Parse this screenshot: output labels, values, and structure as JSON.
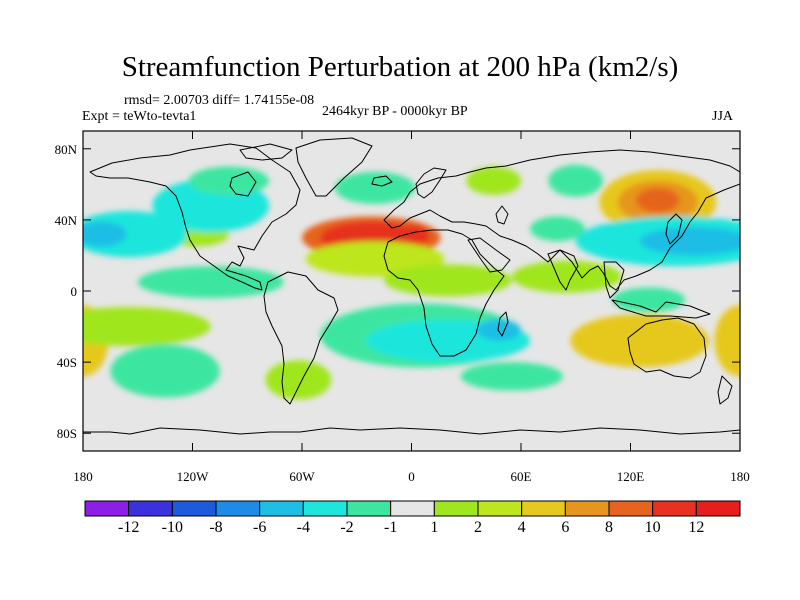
{
  "header": {
    "title": "Streamfunction Perturbation at 200 hPa (km2/s)",
    "stats": "rmsd= 2.00703 diff= 1.74155e-08",
    "experiment": "Expt = teWto-tevta1",
    "period": "2464kyr BP - 0000kyr BP",
    "season": "JJA"
  },
  "chart_data": {
    "type": "heatmap",
    "subtype": "filled-contour map",
    "title": "Streamfunction Perturbation at 200 hPa (km2/s)",
    "variable": "Streamfunction perturbation",
    "level": "200 hPa",
    "units": "km2/s",
    "season": "JJA",
    "xlim": [
      -180,
      180
    ],
    "ylim": [
      -90,
      90
    ],
    "x_ticks": [
      {
        "value": -180,
        "label": "180"
      },
      {
        "value": -120,
        "label": "120W"
      },
      {
        "value": -60,
        "label": "60W"
      },
      {
        "value": 0,
        "label": "0"
      },
      {
        "value": 60,
        "label": "60E"
      },
      {
        "value": 120,
        "label": "120E"
      },
      {
        "value": 180,
        "label": "180"
      }
    ],
    "y_ticks": [
      {
        "value": 80,
        "label": "80N"
      },
      {
        "value": 40,
        "label": "40N"
      },
      {
        "value": 0,
        "label": "0"
      },
      {
        "value": -40,
        "label": "40S"
      },
      {
        "value": -80,
        "label": "80S"
      }
    ],
    "levels": [
      -12,
      -10,
      -8,
      -6,
      -4,
      -2,
      -1,
      1,
      2,
      4,
      6,
      8,
      10,
      12
    ],
    "colorbar": {
      "labels": [
        "-12",
        "-10",
        "-8",
        "-6",
        "-4",
        "-2",
        "-1",
        "1",
        "2",
        "4",
        "6",
        "8",
        "10",
        "12"
      ],
      "colors": [
        "#8c1ee6",
        "#3c32dc",
        "#1e5adc",
        "#1e8ce6",
        "#1ebee6",
        "#1ee6dc",
        "#3ce6a0",
        "#e6e6e6",
        "#a0e61e",
        "#bee61e",
        "#e6c81e",
        "#e6961e",
        "#e6641e",
        "#e6321e",
        "#e61e1e"
      ]
    },
    "features": [
      {
        "name": "positive",
        "lon": -22,
        "lat": 30,
        "rx": 38,
        "ry": 12,
        "level_index": 12
      },
      {
        "name": "positive",
        "lon": -22,
        "lat": 30,
        "rx": 28,
        "ry": 9,
        "level_index": 13
      },
      {
        "name": "positive",
        "lon": 0,
        "lat": 31,
        "rx": 10,
        "ry": 6,
        "level_index": 13
      },
      {
        "name": "positive",
        "lon": 135,
        "lat": 50,
        "rx": 32,
        "ry": 18,
        "level_index": 10
      },
      {
        "name": "positive",
        "lon": 135,
        "lat": 50,
        "rx": 22,
        "ry": 12,
        "level_index": 11
      },
      {
        "name": "positive",
        "lon": 135,
        "lat": 51,
        "rx": 12,
        "ry": 7,
        "level_index": 12
      },
      {
        "name": "positive",
        "lon": 125,
        "lat": -28,
        "rx": 38,
        "ry": 15,
        "level_index": 10
      },
      {
        "name": "positive",
        "lon": -180,
        "lat": -28,
        "rx": 14,
        "ry": 20,
        "level_index": 10
      },
      {
        "name": "positive",
        "lon": 180,
        "lat": -28,
        "rx": 14,
        "ry": 20,
        "level_index": 10
      },
      {
        "name": "positive",
        "lon": -20,
        "lat": 18,
        "rx": 38,
        "ry": 10,
        "level_index": 9
      },
      {
        "name": "positive",
        "lon": -118,
        "lat": 32,
        "rx": 18,
        "ry": 7,
        "level_index": 8
      },
      {
        "name": "positive",
        "lon": -155,
        "lat": -20,
        "rx": 45,
        "ry": 11,
        "level_index": 8
      },
      {
        "name": "positive",
        "lon": 20,
        "lat": 6,
        "rx": 35,
        "ry": 9,
        "level_index": 8
      },
      {
        "name": "positive",
        "lon": -62,
        "lat": -50,
        "rx": 18,
        "ry": 11,
        "level_index": 8
      },
      {
        "name": "positive",
        "lon": 45,
        "lat": 62,
        "rx": 15,
        "ry": 8,
        "level_index": 8
      },
      {
        "name": "positive",
        "lon": 85,
        "lat": 8,
        "rx": 30,
        "ry": 9,
        "level_index": 8
      },
      {
        "name": "negative",
        "lon": -155,
        "lat": 32,
        "rx": 32,
        "ry": 13,
        "level_index": 5
      },
      {
        "name": "negative",
        "lon": -170,
        "lat": 32,
        "rx": 14,
        "ry": 7,
        "level_index": 4
      },
      {
        "name": "negative",
        "lon": 145,
        "lat": 28,
        "rx": 55,
        "ry": 14,
        "level_index": 5
      },
      {
        "name": "negative",
        "lon": 155,
        "lat": 28,
        "rx": 30,
        "ry": 8,
        "level_index": 4
      },
      {
        "name": "negative",
        "lon": -110,
        "lat": 48,
        "rx": 32,
        "ry": 15,
        "level_index": 5
      },
      {
        "name": "negative",
        "lon": -100,
        "lat": 62,
        "rx": 22,
        "ry": 8,
        "level_index": 6
      },
      {
        "name": "negative",
        "lon": 5,
        "lat": -25,
        "rx": 55,
        "ry": 18,
        "level_index": 6
      },
      {
        "name": "negative",
        "lon": 20,
        "lat": -28,
        "rx": 45,
        "ry": 12,
        "level_index": 5
      },
      {
        "name": "negative",
        "lon": 48,
        "lat": -22,
        "rx": 12,
        "ry": 6,
        "level_index": 4
      },
      {
        "name": "negative",
        "lon": -135,
        "lat": -45,
        "rx": 30,
        "ry": 15,
        "level_index": 6
      },
      {
        "name": "negative",
        "lon": -110,
        "lat": 5,
        "rx": 40,
        "ry": 9,
        "level_index": 6
      },
      {
        "name": "negative",
        "lon": -20,
        "lat": 58,
        "rx": 22,
        "ry": 9,
        "level_index": 6
      },
      {
        "name": "negative",
        "lon": 80,
        "lat": 35,
        "rx": 15,
        "ry": 7,
        "level_index": 6
      },
      {
        "name": "negative",
        "lon": 90,
        "lat": 62,
        "rx": 15,
        "ry": 9,
        "level_index": 6
      },
      {
        "name": "negative",
        "lon": 55,
        "lat": -48,
        "rx": 28,
        "ry": 8,
        "level_index": 6
      },
      {
        "name": "negative",
        "lon": 130,
        "lat": -5,
        "rx": 20,
        "ry": 7,
        "level_index": 6
      }
    ]
  }
}
